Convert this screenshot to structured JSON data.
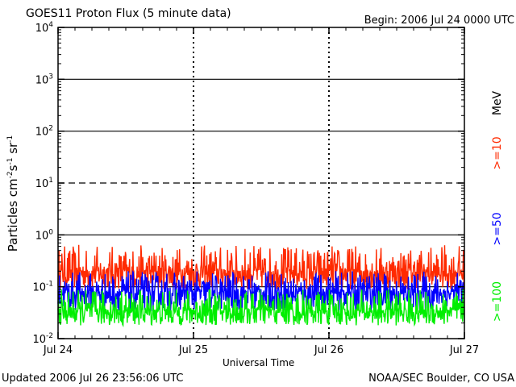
{
  "header": {
    "title": "GOES11 Proton Flux (5 minute data)",
    "begin": "Begin: 2006 Jul 24 0000 UTC"
  },
  "footer": {
    "updated": "Updated 2006 Jul 26 23:56:06 UTC",
    "credit": "NOAA/SEC Boulder, CO USA"
  },
  "chart_data": {
    "type": "line",
    "title": "GOES11 Proton Flux (5 minute data)",
    "xlabel": "Universal Time",
    "ylabel": {
      "base": "Particles cm",
      "exp1": "-2",
      "mid1": "s",
      "exp2": "-1",
      "mid2": "sr",
      "exp3": "-1"
    },
    "y_scale": "log",
    "ylim": [
      0.01,
      10000
    ],
    "y_ticks": [
      {
        "value": 10000,
        "base": "10",
        "exp": "4"
      },
      {
        "value": 1000,
        "base": "10",
        "exp": "3"
      },
      {
        "value": 100,
        "base": "10",
        "exp": "2"
      },
      {
        "value": 10,
        "base": "10",
        "exp": "1"
      },
      {
        "value": 1,
        "base": "10",
        "exp": "0"
      },
      {
        "value": 0.1,
        "base": "10",
        "exp": "-1"
      },
      {
        "value": 0.01,
        "base": "10",
        "exp": "-2"
      }
    ],
    "x_ticks": [
      "Jul 24",
      "Jul 25",
      "Jul 26",
      "Jul 27"
    ],
    "xlim_days": [
      0,
      3
    ],
    "threshold_lines": [
      {
        "value": 10,
        "style": "dashed"
      },
      {
        "value": 1,
        "style": "solid"
      },
      {
        "value": 100,
        "style": "solid"
      },
      {
        "value": 1000,
        "style": "solid"
      },
      {
        "value": 0.1,
        "style": "solid"
      }
    ],
    "unit_label": "MeV",
    "series": [
      {
        "name": ">=10",
        "color": "#ff2a00",
        "typical": 0.2,
        "low": 0.09,
        "high": 0.65
      },
      {
        "name": ">=50",
        "color": "#0000ff",
        "typical": 0.08,
        "low": 0.035,
        "high": 0.2
      },
      {
        "name": ">=100",
        "color": "#00ee00",
        "typical": 0.035,
        "low": 0.018,
        "high": 0.09
      }
    ]
  }
}
